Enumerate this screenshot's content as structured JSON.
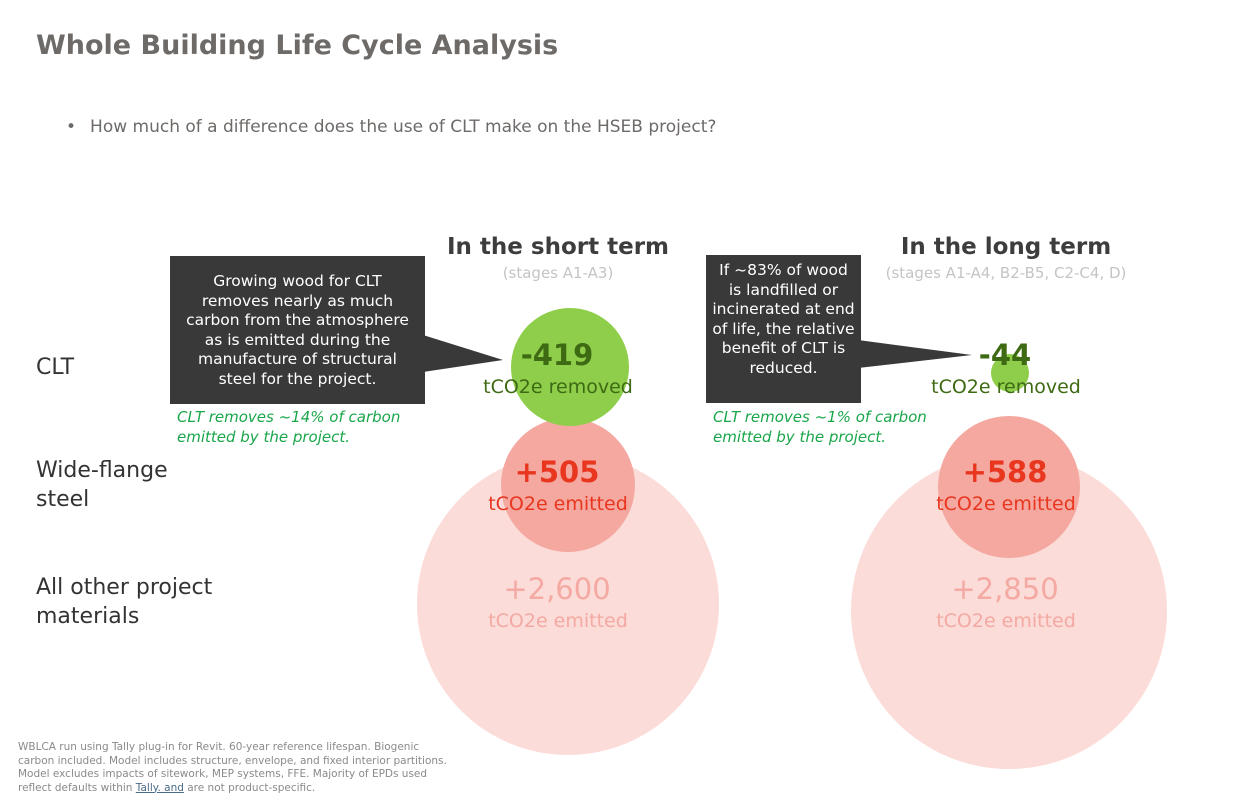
{
  "title": "Whole Building Life Cycle Analysis",
  "bullet": "How much of a difference does the use of CLT make on the HSEB project?",
  "columns": [
    {
      "heading": "In the short term",
      "stages": "(stages A1-A3)"
    },
    {
      "heading": "In the long term",
      "stages": "(stages A1-A4, B2-B5, C2-C4, D)"
    }
  ],
  "rows": {
    "clt": "CLT",
    "steel": "Wide-flange steel",
    "other": "All other project materials"
  },
  "short_term": {
    "clt": {
      "value": "-419",
      "unit": "tCO2e removed"
    },
    "steel": {
      "value": "+505",
      "unit": "tCO2e emitted"
    },
    "other": {
      "value": "+2,600",
      "unit": "tCO2e emitted"
    },
    "callout": "Growing wood for CLT removes nearly as much carbon from the atmosphere as is emitted during the manufacture of structural steel for the project.",
    "note": "CLT removes ~14% of carbon emitted by the project."
  },
  "long_term": {
    "clt": {
      "value": "-44",
      "unit": "tCO2e removed"
    },
    "steel": {
      "value": "+588",
      "unit": "tCO2e emitted"
    },
    "other": {
      "value": "+2,850",
      "unit": "tCO2e emitted"
    },
    "callout": "If ~83% of wood is landfilled or incinerated at end of life, the relative benefit of CLT is reduced.",
    "note": "CLT removes ~1% of carbon emitted by the project."
  },
  "footer": {
    "text_before": "WBLCA run using Tally plug-in for Revit. 60-year reference lifespan. Biogenic carbon included. Model includes structure, envelope, and fixed interior partitions. Model excludes impacts of sitework, MEP systems, FFE. Majority of EPDs used reflect defaults within ",
    "link": "Tally. and",
    "text_after": " are not product-specific."
  },
  "colors": {
    "removed": "#8ece4a",
    "steel": "#f4a8a0",
    "other": "#fbdcd8",
    "removed_text": "#3e6a14",
    "steel_text": "#e8361f",
    "other_text": "#f4a9a2",
    "note_text": "#1aa64a",
    "callout_bg": "#3a3939"
  }
}
